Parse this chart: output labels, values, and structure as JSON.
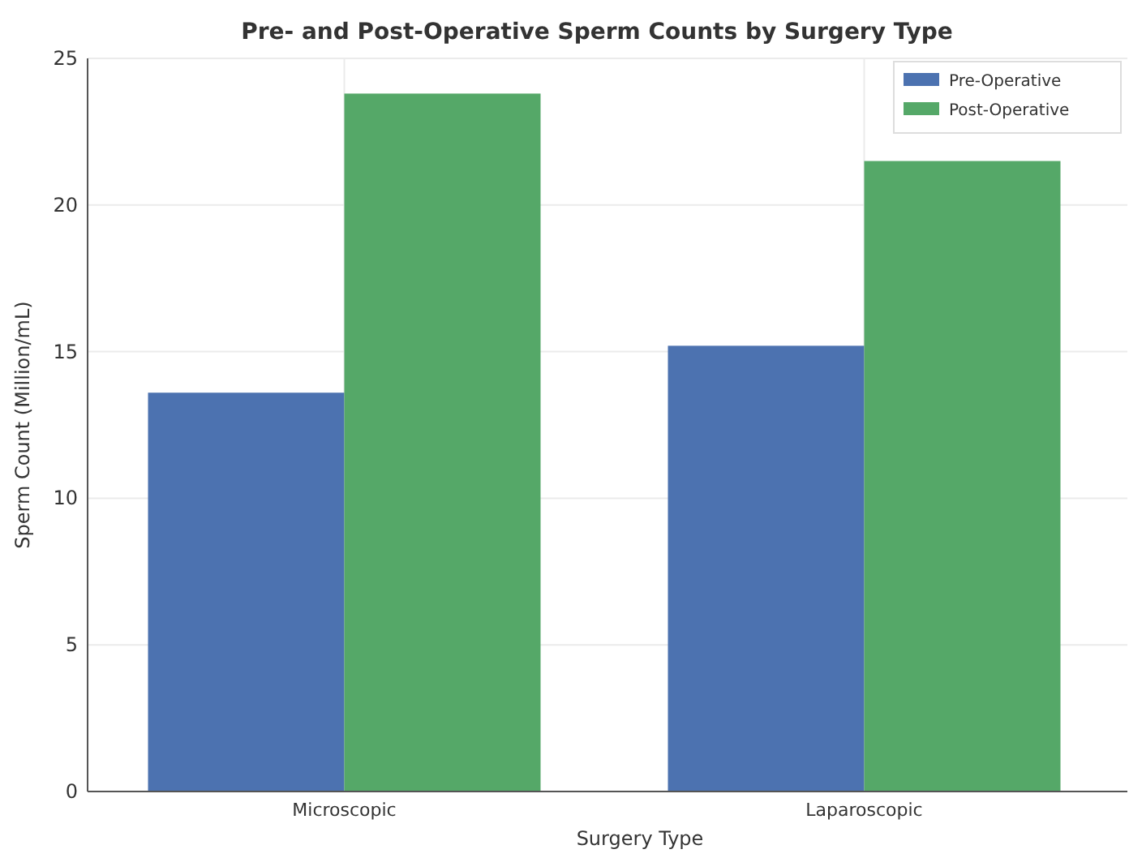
{
  "chart_data": {
    "type": "bar",
    "title": "Pre- and Post-Operative Sperm Counts by Surgery Type",
    "xlabel": "Surgery Type",
    "ylabel": "Sperm Count (Million/mL)",
    "categories": [
      "Microscopic",
      "Laparoscopic"
    ],
    "series": [
      {
        "name": "Pre-Operative",
        "color": "#4c72b0",
        "values": [
          13.6,
          15.2
        ]
      },
      {
        "name": "Post-Operative",
        "color": "#55a868",
        "values": [
          23.8,
          21.5
        ]
      }
    ],
    "ylim": [
      0,
      25
    ],
    "yticks": [
      0,
      5,
      10,
      15,
      20,
      25
    ],
    "grid": true,
    "legend": "top right"
  }
}
